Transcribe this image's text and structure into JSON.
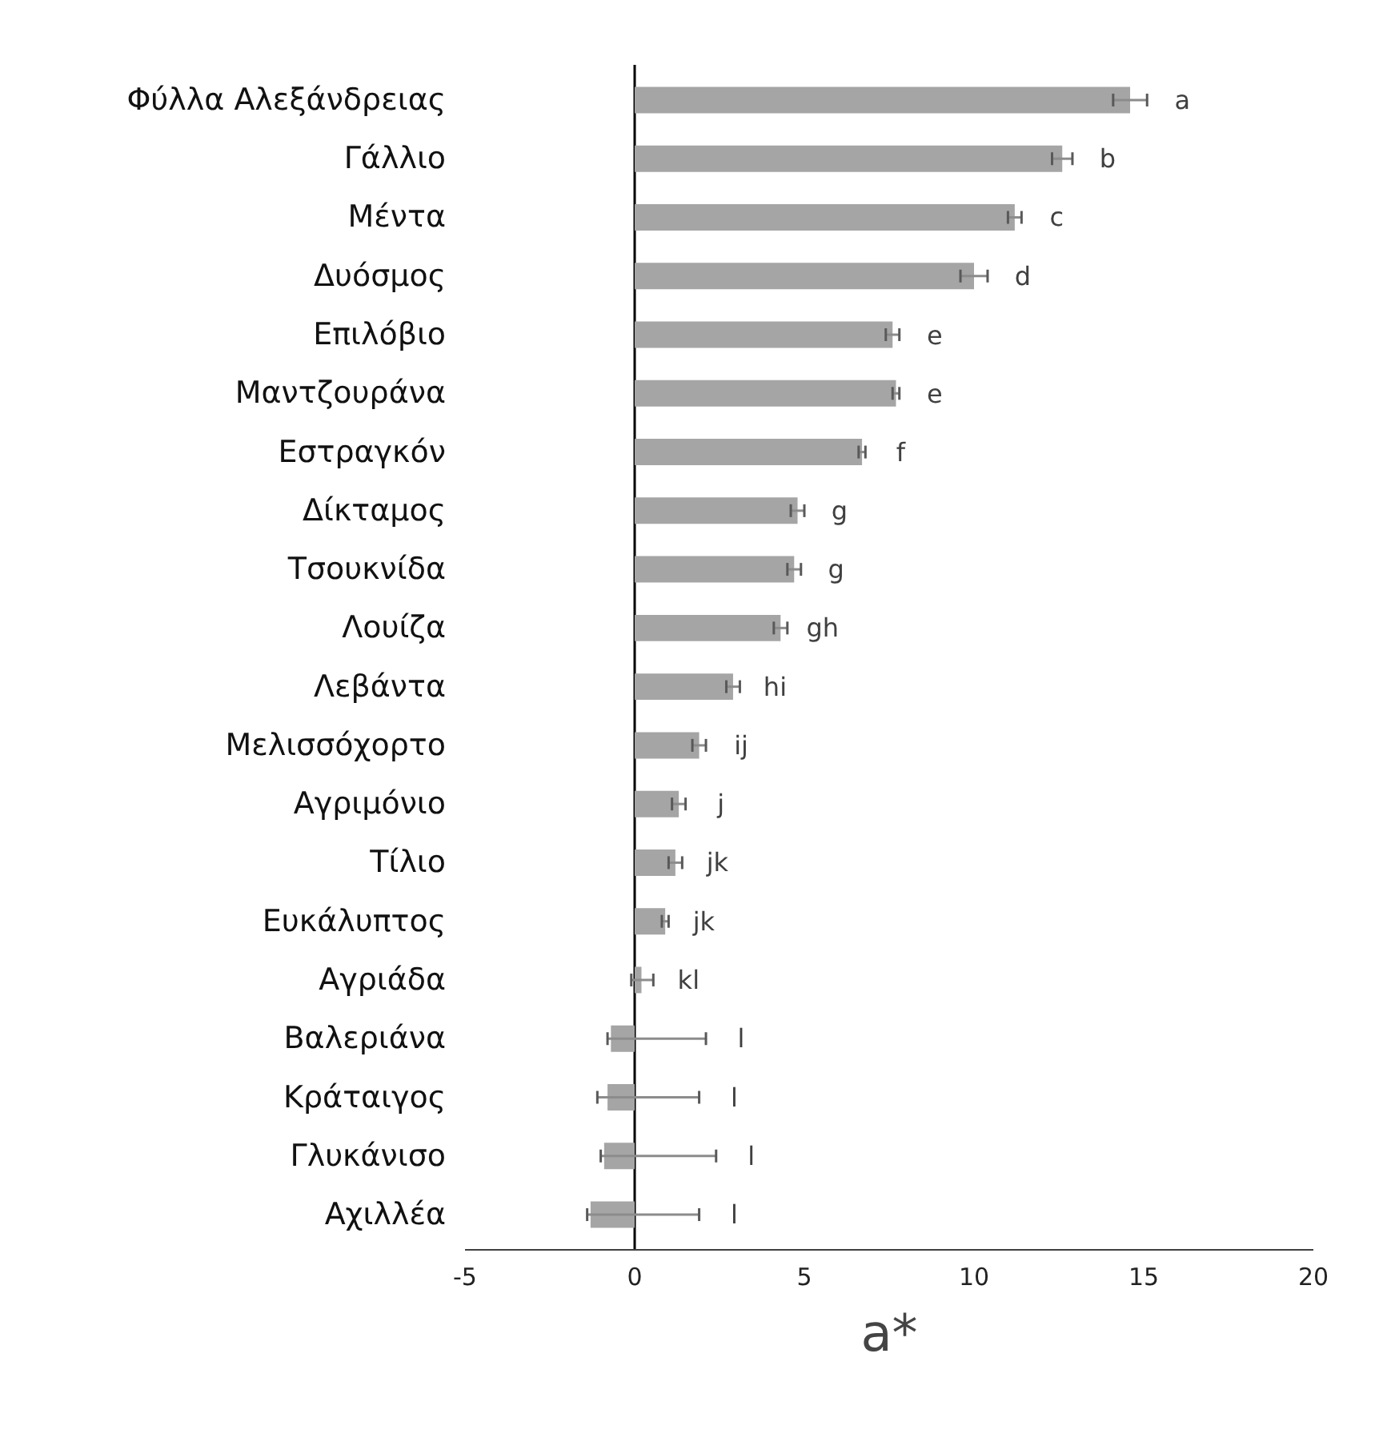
{
  "chart_data": {
    "type": "bar",
    "orientation": "horizontal",
    "xlabel": "a*",
    "categories": [
      "Φύλλα Αλεξάνδρειας",
      "Γάλλιο",
      "Μέντα",
      "Δυόσμος",
      "Επιλόβιο",
      "Μαντζουράνα",
      "Εστραγκόν",
      "Δίκταμος",
      "Τσουκνίδα",
      "Λουίζα",
      "Λεβάντα",
      "Μελισσόχορτο",
      "Αγριμόνιο",
      "Τίλιο",
      "Ευκάλυπτος",
      "Αγριάδα",
      "Βαλεριάνα",
      "Κράταιγος",
      "Γλυκάνισο",
      "Αχιλλέα"
    ],
    "values": [
      14.6,
      12.6,
      11.2,
      10.0,
      7.6,
      7.7,
      6.7,
      4.8,
      4.7,
      4.3,
      2.9,
      1.9,
      1.3,
      1.2,
      0.9,
      0.2,
      -0.7,
      -0.8,
      -0.9,
      -1.3
    ],
    "errors": [
      0.5,
      0.3,
      0.2,
      0.4,
      0.2,
      0.1,
      0.1,
      0.2,
      0.2,
      0.2,
      0.2,
      0.2,
      0.2,
      0.2,
      0.1,
      [
        -0.1,
        0.55
      ],
      [
        -0.8,
        2.1
      ],
      [
        -1.1,
        1.9
      ],
      [
        -1.0,
        2.4
      ],
      [
        -1.4,
        1.9
      ]
    ],
    "color": "#a5a5a5",
    "xlim": [
      -5,
      20
    ],
    "xticks": [
      -5,
      0,
      5,
      10,
      15,
      20
    ],
    "annotations": [
      "a",
      "b",
      "c",
      "d",
      "e",
      "e",
      "f",
      "g",
      "g",
      "gh",
      "hi",
      "ij",
      "j",
      "jk",
      "jk",
      "kl",
      "l",
      "l",
      "l",
      "l"
    ]
  }
}
